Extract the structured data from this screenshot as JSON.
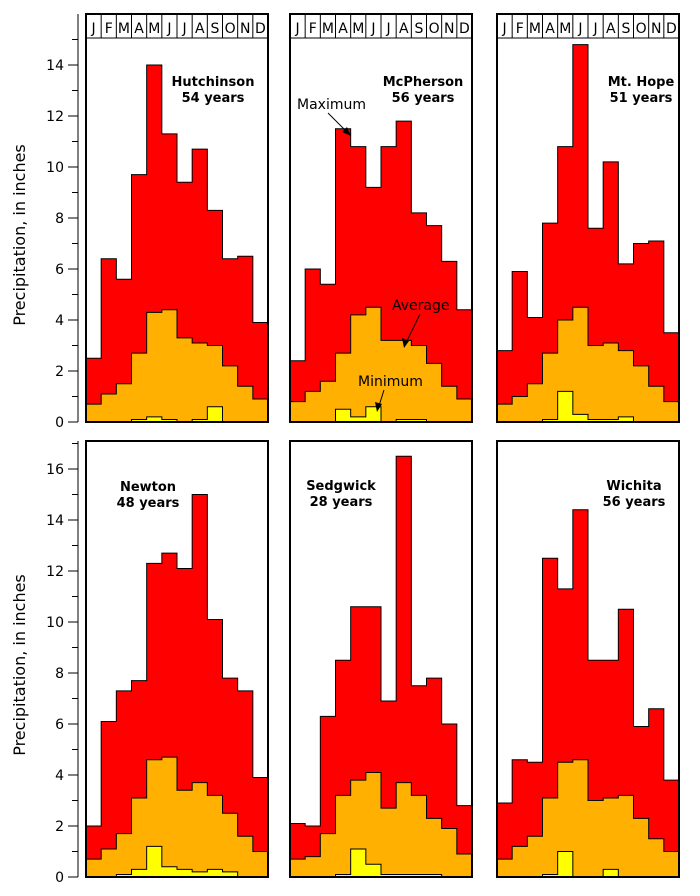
{
  "chart_data": {
    "type": "bar",
    "ylabel": "Precipitation, in inches",
    "months": [
      "J",
      "F",
      "M",
      "A",
      "M",
      "J",
      "J",
      "A",
      "S",
      "O",
      "N",
      "D"
    ],
    "colors": {
      "maximum": "#ff0000",
      "average": "#ffb000",
      "minimum": "#ffff00"
    },
    "annotations": {
      "maximum": "Maximum",
      "average": "Average",
      "minimum": "Minimum"
    },
    "rows": [
      {
        "yticks": [
          0,
          2,
          4,
          6,
          8,
          10,
          12,
          14
        ],
        "ylim": [
          0,
          15.2
        ]
      },
      {
        "yticks": [
          0,
          2,
          4,
          6,
          8,
          10,
          12,
          14,
          16
        ],
        "ylim": [
          0,
          17.2
        ]
      }
    ],
    "panels": [
      {
        "station": "Hutchinson",
        "years": "54 years",
        "maximum": [
          2.5,
          6.4,
          5.6,
          9.7,
          14.0,
          11.3,
          9.4,
          10.7,
          8.3,
          6.4,
          6.5,
          3.9
        ],
        "average": [
          0.7,
          1.1,
          1.5,
          2.7,
          4.3,
          4.4,
          3.3,
          3.1,
          3.0,
          2.2,
          1.4,
          0.9
        ],
        "minimum": [
          0.0,
          0.0,
          0.0,
          0.1,
          0.2,
          0.1,
          0.0,
          0.1,
          0.6,
          0.0,
          0.0,
          0.0
        ]
      },
      {
        "station": "McPherson",
        "years": "56 years",
        "maximum": [
          2.4,
          6.0,
          5.4,
          11.5,
          10.8,
          9.2,
          10.8,
          11.8,
          8.2,
          7.7,
          6.3,
          4.4
        ],
        "average": [
          0.8,
          1.2,
          1.6,
          2.7,
          4.2,
          4.5,
          3.2,
          3.2,
          3.0,
          2.3,
          1.4,
          0.9
        ],
        "minimum": [
          0.0,
          0.0,
          0.0,
          0.5,
          0.2,
          0.6,
          0.0,
          0.1,
          0.1,
          0.0,
          0.0,
          0.0
        ]
      },
      {
        "station": "Mt. Hope",
        "years": "51 years",
        "maximum": [
          2.8,
          5.9,
          4.1,
          7.8,
          10.8,
          14.8,
          7.6,
          10.2,
          6.2,
          7.0,
          7.1,
          3.5
        ],
        "average": [
          0.7,
          1.0,
          1.5,
          2.7,
          4.0,
          4.5,
          3.0,
          3.1,
          2.8,
          2.2,
          1.4,
          0.8
        ],
        "minimum": [
          0.0,
          0.0,
          0.0,
          0.1,
          1.2,
          0.3,
          0.1,
          0.1,
          0.2,
          0.0,
          0.0,
          0.0
        ]
      },
      {
        "station": "Newton",
        "years": "48 years",
        "maximum": [
          2.0,
          6.1,
          7.3,
          7.7,
          12.3,
          12.7,
          12.1,
          15.0,
          10.1,
          7.8,
          7.3,
          3.9
        ],
        "average": [
          0.7,
          1.1,
          1.7,
          3.1,
          4.6,
          4.7,
          3.4,
          3.7,
          3.2,
          2.5,
          1.6,
          1.0
        ],
        "minimum": [
          0.0,
          0.0,
          0.1,
          0.3,
          1.2,
          0.4,
          0.3,
          0.2,
          0.3,
          0.2,
          0.0,
          0.0
        ]
      },
      {
        "station": "Sedgwick",
        "years": "28 years",
        "maximum": [
          2.1,
          2.0,
          6.3,
          8.5,
          10.6,
          10.6,
          6.9,
          16.5,
          7.5,
          7.8,
          6.0,
          2.8
        ],
        "average": [
          0.7,
          0.8,
          1.7,
          3.2,
          3.8,
          4.1,
          2.7,
          3.7,
          3.2,
          2.3,
          1.9,
          0.9
        ],
        "minimum": [
          0.0,
          0.0,
          0.0,
          0.1,
          1.1,
          0.5,
          0.1,
          0.1,
          0.1,
          0.1,
          0.0,
          0.0
        ]
      },
      {
        "station": "Wichita",
        "years": "56 years",
        "maximum": [
          2.9,
          4.6,
          4.5,
          12.5,
          11.3,
          14.4,
          8.5,
          8.5,
          10.5,
          5.9,
          6.6,
          3.8
        ],
        "average": [
          0.7,
          1.2,
          1.6,
          3.1,
          4.5,
          4.6,
          3.0,
          3.1,
          3.2,
          2.3,
          1.5,
          1.0
        ],
        "minimum": [
          0.0,
          0.0,
          0.0,
          0.1,
          1.0,
          0.0,
          0.0,
          0.3,
          0.0,
          0.0,
          0.0,
          0.0
        ]
      }
    ]
  }
}
